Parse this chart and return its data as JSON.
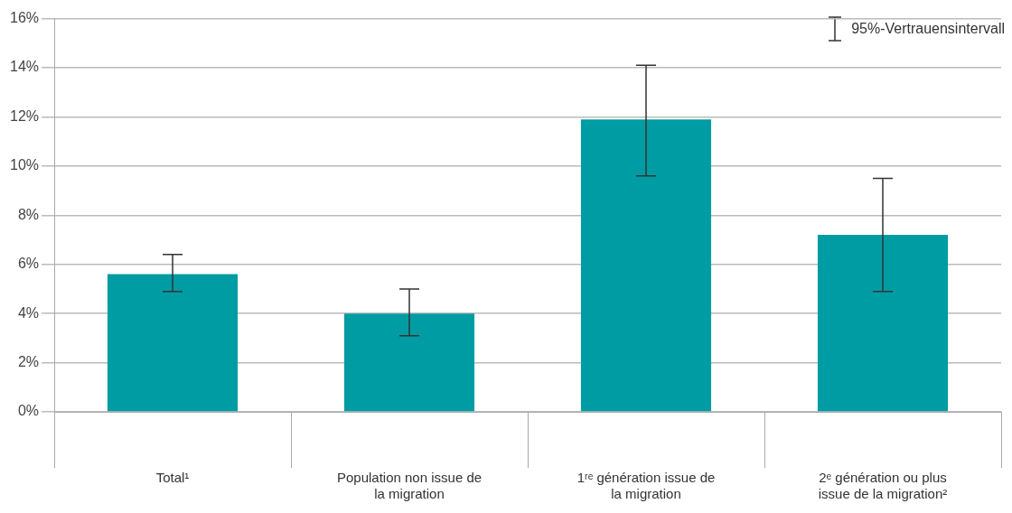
{
  "chart_data": {
    "type": "bar",
    "categories": [
      "Total¹",
      "Population non issue de la migration",
      "1ʳᵉ génération issue de la migration",
      "2ᵉ génération ou plus issue de la migration²"
    ],
    "values": [
      5.6,
      4.0,
      11.9,
      7.2
    ],
    "color": "#009ca3",
    "errors": [
      [
        4.9,
        6.4
      ],
      [
        3.1,
        5.0
      ],
      [
        9.6,
        14.1
      ],
      [
        4.9,
        9.5
      ]
    ],
    "ylim": [
      0,
      16
    ],
    "yticks": [
      {
        "value": 0,
        "label": "0%"
      },
      {
        "value": 2,
        "label": "2%"
      },
      {
        "value": 4,
        "label": "4%"
      },
      {
        "value": 6,
        "label": "6%"
      },
      {
        "value": 8,
        "label": "8%"
      },
      {
        "value": 10,
        "label": "10%"
      },
      {
        "value": 12,
        "label": "12%"
      },
      {
        "value": 14,
        "label": "14%"
      },
      {
        "value": 16,
        "label": "16%"
      }
    ],
    "grid": "y",
    "annotations": [
      "95%-Vertrauensintervall"
    ]
  }
}
